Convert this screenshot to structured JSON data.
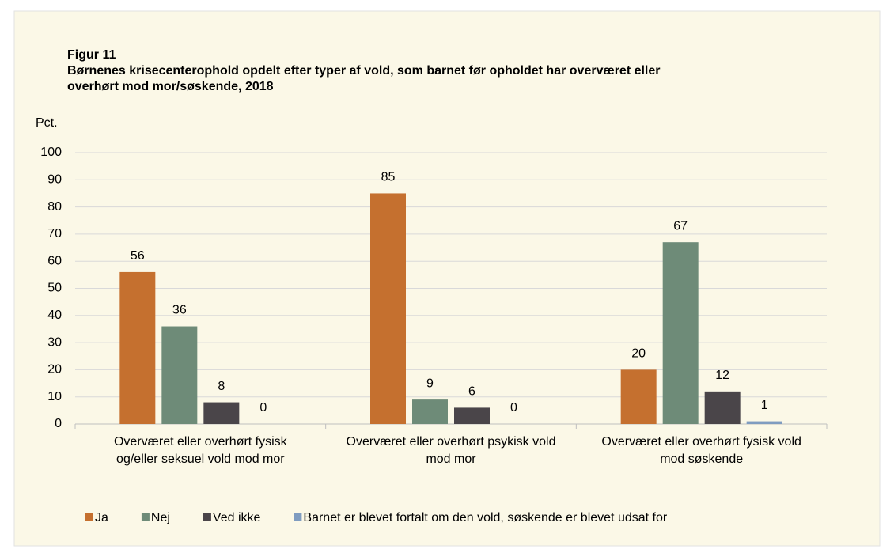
{
  "chart_data": {
    "type": "bar",
    "title": "Figur 11",
    "subtitle": "Børnenes krisecenterophold opdelt efter typer af vold, som barnet før opholdet har overværet eller overhørt mod mor/søskende, 2018",
    "y_label": "Pct.",
    "categories": [
      "Overværet eller overhørt fysisk og/eller seksuel vold mod mor",
      "Overværet eller overhørt psykisk vold mod mor",
      "Overværet eller overhørt fysisk vold mod søskende"
    ],
    "series": [
      {
        "name": "Ja",
        "color": "#c5702f",
        "values": [
          56,
          85,
          20
        ]
      },
      {
        "name": "Nej",
        "color": "#6e8b78",
        "values": [
          36,
          9,
          67
        ]
      },
      {
        "name": "Ved ikke",
        "color": "#4a4549",
        "values": [
          8,
          6,
          12
        ]
      },
      {
        "name": "Barnet er blevet fortalt om den vold, søskende er blevet udsat for",
        "color": "#7f9cc0",
        "values": [
          0,
          0,
          1
        ]
      }
    ],
    "ylim": [
      0,
      100
    ],
    "yticks": [
      0,
      10,
      20,
      30,
      40,
      50,
      60,
      70,
      80,
      90,
      100
    ],
    "grid": true,
    "legend": "bottom"
  }
}
